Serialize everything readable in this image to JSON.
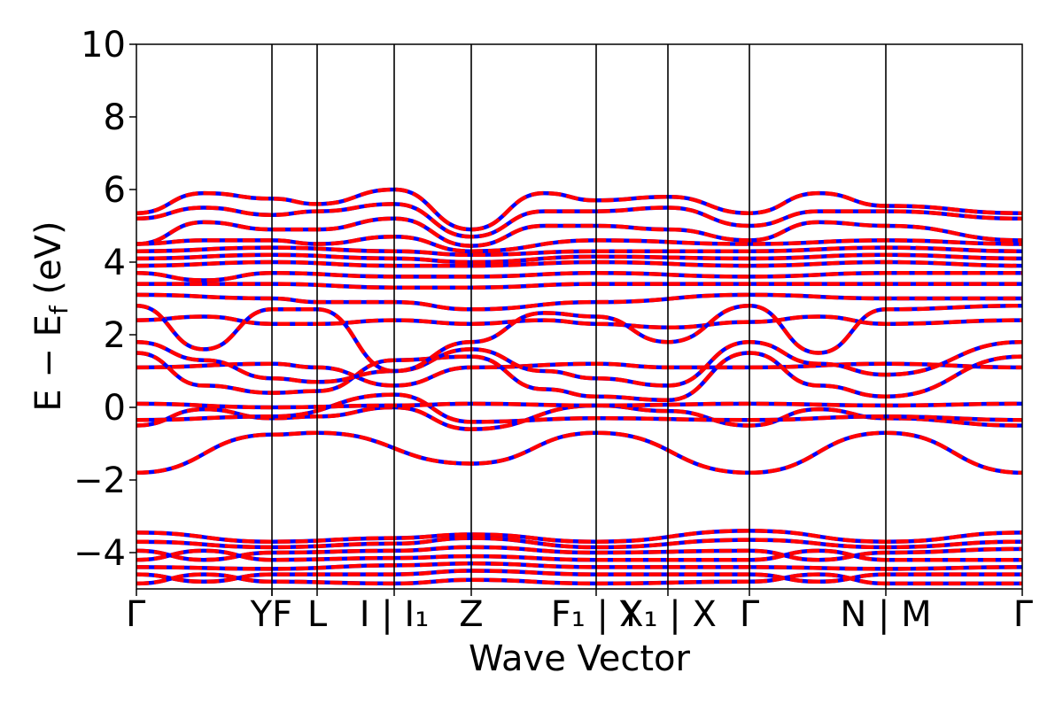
{
  "chart_data": {
    "type": "line",
    "title": "",
    "xlabel": "Wave Vector",
    "ylabel_main": "E − E",
    "ylabel_sub": "f",
    "ylabel_unit": " (eV)",
    "ylim": [
      -5,
      10
    ],
    "yticks": [
      -4,
      -2,
      0,
      2,
      4,
      6,
      8,
      10
    ],
    "ytick_labels": [
      "−4",
      "−2",
      "0",
      "2",
      "4",
      "6",
      "8",
      "10"
    ],
    "path_ticks": [
      {
        "pos": 0.0,
        "label": "Γ"
      },
      {
        "pos": 0.153,
        "label": "Y"
      },
      {
        "pos": 0.153,
        "label": "F"
      },
      {
        "pos": 0.204,
        "label": "L"
      },
      {
        "pos": 0.291,
        "label": "I | I₁"
      },
      {
        "pos": 0.378,
        "label": "Z"
      },
      {
        "pos": 0.519,
        "label": "F₁ | Y"
      },
      {
        "pos": 0.6,
        "label": "X₁ | X"
      },
      {
        "pos": 0.692,
        "label": "Γ"
      },
      {
        "pos": 0.846,
        "label": "N | M"
      },
      {
        "pos": 1.0,
        "label": "Γ"
      }
    ],
    "series": [
      {
        "name": "",
        "color": "#0000ff",
        "dashed": false
      },
      {
        "name": "",
        "color": "#ff0000",
        "dashed": true
      }
    ],
    "band_shape_note": "bands drawn as smooth curves across the k-path",
    "bands": [
      {
        "nodes": [
          [
            0,
            -1.8
          ],
          [
            0.153,
            -0.75
          ],
          [
            0.204,
            -0.7
          ],
          [
            0.378,
            -1.55
          ],
          [
            0.519,
            -0.7
          ],
          [
            0.692,
            -1.8
          ],
          [
            0.846,
            -0.7
          ],
          [
            1.0,
            -1.8
          ]
        ]
      },
      {
        "nodes": [
          [
            0,
            -0.5
          ],
          [
            0.076,
            -0.05
          ],
          [
            0.153,
            -0.3
          ],
          [
            0.204,
            -0.25
          ],
          [
            0.291,
            0.0
          ],
          [
            0.378,
            -0.6
          ],
          [
            0.519,
            0.05
          ],
          [
            0.6,
            -0.1
          ],
          [
            0.692,
            -0.5
          ],
          [
            0.77,
            -0.05
          ],
          [
            0.846,
            -0.3
          ],
          [
            1.0,
            -0.5
          ]
        ]
      },
      {
        "nodes": [
          [
            0,
            -0.35
          ],
          [
            0.153,
            -0.25
          ],
          [
            0.291,
            0.35
          ],
          [
            0.378,
            -0.4
          ],
          [
            0.519,
            -0.3
          ],
          [
            0.692,
            -0.35
          ],
          [
            0.846,
            -0.25
          ],
          [
            1.0,
            -0.35
          ]
        ]
      },
      {
        "nodes": [
          [
            0,
            0.1
          ],
          [
            0.153,
            0.0
          ],
          [
            0.291,
            0.05
          ],
          [
            0.378,
            0.1
          ],
          [
            0.519,
            0.05
          ],
          [
            0.692,
            0.1
          ],
          [
            0.846,
            0.05
          ],
          [
            1.0,
            0.1
          ]
        ]
      },
      {
        "nodes": [
          [
            0,
            1.1
          ],
          [
            0.153,
            1.2
          ],
          [
            0.204,
            1.1
          ],
          [
            0.291,
            0.6
          ],
          [
            0.378,
            1.1
          ],
          [
            0.519,
            1.2
          ],
          [
            0.6,
            1.1
          ],
          [
            0.692,
            1.1
          ],
          [
            0.846,
            1.2
          ],
          [
            1.0,
            1.1
          ]
        ]
      },
      {
        "nodes": [
          [
            0,
            1.5
          ],
          [
            0.076,
            0.6
          ],
          [
            0.153,
            0.4
          ],
          [
            0.204,
            0.45
          ],
          [
            0.291,
            1.3
          ],
          [
            0.378,
            1.4
          ],
          [
            0.46,
            0.5
          ],
          [
            0.519,
            0.3
          ],
          [
            0.6,
            0.2
          ],
          [
            0.692,
            1.5
          ],
          [
            0.77,
            0.6
          ],
          [
            0.846,
            0.3
          ],
          [
            1.0,
            1.4
          ]
        ]
      },
      {
        "nodes": [
          [
            0,
            1.8
          ],
          [
            0.076,
            1.3
          ],
          [
            0.153,
            0.8
          ],
          [
            0.204,
            0.7
          ],
          [
            0.291,
            1.0
          ],
          [
            0.378,
            1.6
          ],
          [
            0.46,
            1.0
          ],
          [
            0.519,
            0.8
          ],
          [
            0.6,
            0.6
          ],
          [
            0.692,
            1.8
          ],
          [
            0.77,
            1.2
          ],
          [
            0.846,
            0.9
          ],
          [
            1.0,
            1.8
          ]
        ]
      },
      {
        "nodes": [
          [
            0,
            2.4
          ],
          [
            0.076,
            2.5
          ],
          [
            0.153,
            2.3
          ],
          [
            0.204,
            2.3
          ],
          [
            0.291,
            2.4
          ],
          [
            0.378,
            2.3
          ],
          [
            0.46,
            2.4
          ],
          [
            0.519,
            2.3
          ],
          [
            0.6,
            2.2
          ],
          [
            0.692,
            2.35
          ],
          [
            0.77,
            2.5
          ],
          [
            0.846,
            2.3
          ],
          [
            1.0,
            2.4
          ]
        ]
      },
      {
        "nodes": [
          [
            0,
            2.8
          ],
          [
            0.076,
            1.6
          ],
          [
            0.153,
            2.7
          ],
          [
            0.204,
            2.7
          ],
          [
            0.291,
            1.0
          ],
          [
            0.378,
            1.8
          ],
          [
            0.46,
            2.6
          ],
          [
            0.519,
            2.5
          ],
          [
            0.6,
            1.8
          ],
          [
            0.692,
            2.8
          ],
          [
            0.77,
            1.5
          ],
          [
            0.846,
            2.7
          ],
          [
            1.0,
            2.8
          ]
        ]
      },
      {
        "nodes": [
          [
            0,
            3.1
          ],
          [
            0.153,
            3.0
          ],
          [
            0.204,
            2.9
          ],
          [
            0.291,
            2.9
          ],
          [
            0.378,
            2.7
          ],
          [
            0.519,
            2.9
          ],
          [
            0.692,
            3.1
          ],
          [
            0.846,
            3.0
          ],
          [
            1.0,
            3.0
          ]
        ]
      },
      {
        "nodes": [
          [
            0,
            3.4
          ],
          [
            0.153,
            3.4
          ],
          [
            0.291,
            3.3
          ],
          [
            0.378,
            3.3
          ],
          [
            0.519,
            3.4
          ],
          [
            0.692,
            3.4
          ],
          [
            0.846,
            3.4
          ],
          [
            1.0,
            3.4
          ]
        ]
      },
      {
        "nodes": [
          [
            0,
            3.7
          ],
          [
            0.076,
            3.5
          ],
          [
            0.153,
            3.7
          ],
          [
            0.291,
            3.6
          ],
          [
            0.378,
            3.6
          ],
          [
            0.519,
            3.7
          ],
          [
            0.692,
            3.6
          ],
          [
            0.846,
            3.7
          ],
          [
            1.0,
            3.7
          ]
        ]
      },
      {
        "nodes": [
          [
            0,
            3.9
          ],
          [
            0.153,
            4.0
          ],
          [
            0.291,
            3.9
          ],
          [
            0.378,
            3.9
          ],
          [
            0.519,
            4.0
          ],
          [
            0.692,
            3.9
          ],
          [
            0.846,
            4.0
          ],
          [
            1.0,
            3.9
          ]
        ]
      },
      {
        "nodes": [
          [
            0,
            4.1
          ],
          [
            0.153,
            4.2
          ],
          [
            0.291,
            4.1
          ],
          [
            0.378,
            4.0
          ],
          [
            0.519,
            4.15
          ],
          [
            0.692,
            4.1
          ],
          [
            0.846,
            4.2
          ],
          [
            1.0,
            4.1
          ]
        ]
      },
      {
        "nodes": [
          [
            0,
            4.3
          ],
          [
            0.153,
            4.4
          ],
          [
            0.291,
            4.3
          ],
          [
            0.378,
            4.2
          ],
          [
            0.519,
            4.3
          ],
          [
            0.692,
            4.3
          ],
          [
            0.846,
            4.4
          ],
          [
            1.0,
            4.3
          ]
        ]
      },
      {
        "nodes": [
          [
            0,
            4.5
          ],
          [
            0.076,
            4.6
          ],
          [
            0.153,
            4.6
          ],
          [
            0.204,
            4.5
          ],
          [
            0.291,
            4.7
          ],
          [
            0.378,
            4.3
          ],
          [
            0.519,
            4.6
          ],
          [
            0.692,
            4.5
          ],
          [
            0.846,
            4.6
          ],
          [
            1.0,
            4.5
          ]
        ]
      },
      {
        "nodes": [
          [
            0,
            4.5
          ],
          [
            0.076,
            5.1
          ],
          [
            0.153,
            4.9
          ],
          [
            0.204,
            4.9
          ],
          [
            0.291,
            5.2
          ],
          [
            0.378,
            4.45
          ],
          [
            0.46,
            5.0
          ],
          [
            0.519,
            5.0
          ],
          [
            0.6,
            4.9
          ],
          [
            0.692,
            4.6
          ],
          [
            0.77,
            5.1
          ],
          [
            0.846,
            5.0
          ],
          [
            1.0,
            4.6
          ]
        ]
      },
      {
        "nodes": [
          [
            0,
            5.2
          ],
          [
            0.076,
            5.5
          ],
          [
            0.153,
            5.3
          ],
          [
            0.204,
            5.4
          ],
          [
            0.291,
            5.6
          ],
          [
            0.378,
            4.7
          ],
          [
            0.46,
            5.4
          ],
          [
            0.519,
            5.4
          ],
          [
            0.6,
            5.5
          ],
          [
            0.692,
            5.0
          ],
          [
            0.77,
            5.4
          ],
          [
            0.846,
            5.4
          ],
          [
            1.0,
            5.2
          ]
        ]
      },
      {
        "nodes": [
          [
            0,
            5.35
          ],
          [
            0.076,
            5.9
          ],
          [
            0.153,
            5.75
          ],
          [
            0.204,
            5.6
          ],
          [
            0.291,
            6.0
          ],
          [
            0.378,
            4.9
          ],
          [
            0.46,
            5.9
          ],
          [
            0.519,
            5.7
          ],
          [
            0.6,
            5.8
          ],
          [
            0.692,
            5.35
          ],
          [
            0.77,
            5.9
          ],
          [
            0.846,
            5.55
          ],
          [
            1.0,
            5.35
          ]
        ]
      },
      {
        "nodes": [
          [
            0,
            -3.45
          ],
          [
            0.153,
            -3.7
          ],
          [
            0.291,
            -3.6
          ],
          [
            0.378,
            -3.5
          ],
          [
            0.519,
            -3.7
          ],
          [
            0.692,
            -3.4
          ],
          [
            0.846,
            -3.7
          ],
          [
            1.0,
            -3.45
          ]
        ]
      },
      {
        "nodes": [
          [
            0,
            -3.7
          ],
          [
            0.153,
            -3.85
          ],
          [
            0.291,
            -3.75
          ],
          [
            0.378,
            -3.6
          ],
          [
            0.519,
            -3.85
          ],
          [
            0.692,
            -3.65
          ],
          [
            0.846,
            -3.85
          ],
          [
            1.0,
            -3.7
          ]
        ]
      },
      {
        "nodes": [
          [
            0,
            -3.95
          ],
          [
            0.076,
            -4.2
          ],
          [
            0.153,
            -4.0
          ],
          [
            0.291,
            -3.95
          ],
          [
            0.378,
            -3.85
          ],
          [
            0.519,
            -4.0
          ],
          [
            0.692,
            -3.95
          ],
          [
            0.77,
            -4.2
          ],
          [
            0.846,
            -4.0
          ],
          [
            1.0,
            -3.9
          ]
        ]
      },
      {
        "nodes": [
          [
            0,
            -4.2
          ],
          [
            0.076,
            -3.95
          ],
          [
            0.153,
            -4.2
          ],
          [
            0.291,
            -4.15
          ],
          [
            0.378,
            -4.1
          ],
          [
            0.519,
            -4.2
          ],
          [
            0.692,
            -4.2
          ],
          [
            0.77,
            -3.95
          ],
          [
            0.846,
            -4.2
          ],
          [
            1.0,
            -4.2
          ]
        ]
      },
      {
        "nodes": [
          [
            0,
            -4.4
          ],
          [
            0.153,
            -4.45
          ],
          [
            0.291,
            -4.35
          ],
          [
            0.378,
            -4.3
          ],
          [
            0.519,
            -4.4
          ],
          [
            0.692,
            -4.4
          ],
          [
            0.846,
            -4.45
          ],
          [
            1.0,
            -4.4
          ]
        ]
      },
      {
        "nodes": [
          [
            0,
            -4.6
          ],
          [
            0.076,
            -4.8
          ],
          [
            0.153,
            -4.6
          ],
          [
            0.291,
            -4.6
          ],
          [
            0.378,
            -4.5
          ],
          [
            0.519,
            -4.6
          ],
          [
            0.692,
            -4.6
          ],
          [
            0.77,
            -4.8
          ],
          [
            0.846,
            -4.6
          ],
          [
            1.0,
            -4.6
          ]
        ]
      },
      {
        "nodes": [
          [
            0,
            -4.85
          ],
          [
            0.076,
            -4.6
          ],
          [
            0.153,
            -4.8
          ],
          [
            0.291,
            -4.85
          ],
          [
            0.378,
            -4.75
          ],
          [
            0.519,
            -4.85
          ],
          [
            0.692,
            -4.8
          ],
          [
            0.77,
            -4.6
          ],
          [
            0.846,
            -4.85
          ],
          [
            1.0,
            -4.85
          ]
        ]
      }
    ]
  }
}
